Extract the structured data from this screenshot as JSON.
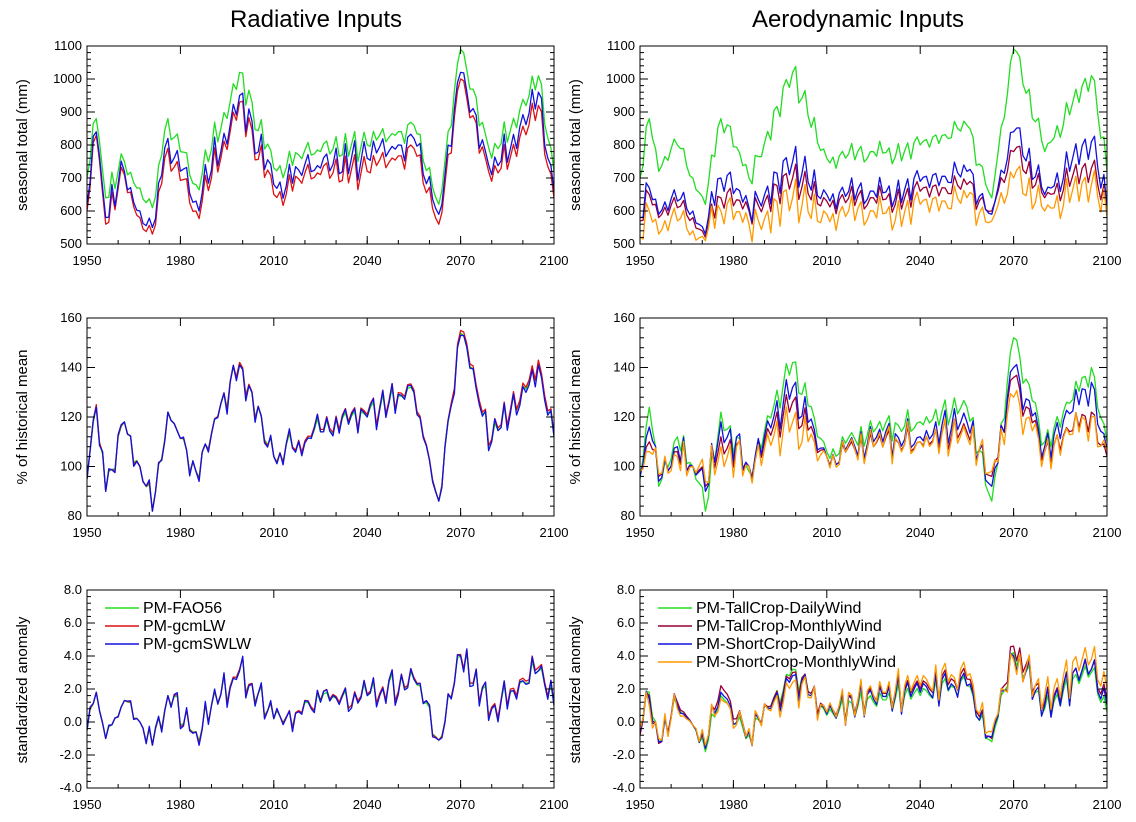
{
  "titles": [
    "Radiative Inputs",
    "Aerodynamic Inputs"
  ],
  "ylabels": [
    "seasonal total (mm)",
    "% of historical mean",
    "standardized anomaly"
  ],
  "chart_data": [
    {
      "type": "line",
      "panel": "radiative-seasonal-total",
      "title": "Radiative Inputs",
      "xlabel": "",
      "ylabel": "seasonal total (mm)",
      "xlim": [
        1950,
        2100
      ],
      "ylim": [
        500,
        1100
      ],
      "xticks": [
        1950,
        1980,
        2010,
        2040,
        2070,
        2100
      ],
      "yticks": [
        500,
        600,
        700,
        800,
        900,
        1000,
        1100
      ],
      "ytick_decimals": 0,
      "anchors_year": [
        1950,
        1953,
        1956,
        1962,
        1967,
        1971,
        1976,
        1985,
        1999,
        2010,
        2025,
        2040,
        2055,
        2063,
        2070,
        2080,
        2095,
        2100
      ],
      "series": [
        {
          "name": "PM-FAO56",
          "color": "#22dd22",
          "anchors": [
            700,
            880,
            640,
            750,
            670,
            610,
            880,
            680,
            1020,
            730,
            780,
            800,
            860,
            620,
            1090,
            760,
            1010,
            720
          ]
        },
        {
          "name": "PM-gcmLW",
          "color": "#dd1111",
          "anchors": [
            600,
            830,
            560,
            710,
            580,
            530,
            790,
            600,
            930,
            650,
            710,
            720,
            790,
            560,
            1000,
            690,
            920,
            640
          ]
        },
        {
          "name": "PM-gcmSWLW",
          "color": "#1111dd",
          "anchors": [
            620,
            840,
            580,
            720,
            600,
            550,
            820,
            630,
            950,
            680,
            730,
            760,
            820,
            590,
            1020,
            710,
            960,
            660
          ]
        }
      ]
    },
    {
      "type": "line",
      "panel": "aerodynamic-seasonal-total",
      "title": "Aerodynamic Inputs",
      "xlabel": "",
      "ylabel": "seasonal total (mm)",
      "xlim": [
        1950,
        2100
      ],
      "ylim": [
        500,
        1100
      ],
      "xticks": [
        1950,
        1980,
        2010,
        2040,
        2070,
        2100
      ],
      "yticks": [
        500,
        600,
        700,
        800,
        900,
        1000,
        1100
      ],
      "ytick_decimals": 0,
      "anchors_year": [
        1950,
        1953,
        1956,
        1962,
        1967,
        1971,
        1976,
        1985,
        1999,
        2010,
        2025,
        2040,
        2055,
        2063,
        2070,
        2080,
        2095,
        2100
      ],
      "series": [
        {
          "name": "PM-TallCrop-DailyWind",
          "color": "#22dd22",
          "anchors": [
            700,
            880,
            720,
            800,
            700,
            620,
            880,
            700,
            1020,
            760,
            780,
            800,
            860,
            640,
            1090,
            780,
            1010,
            720
          ]
        },
        {
          "name": "PM-TallCrop-MonthlyWind",
          "color": "#990033",
          "anchors": [
            570,
            650,
            580,
            610,
            580,
            520,
            640,
            600,
            700,
            630,
            640,
            660,
            680,
            600,
            780,
            640,
            730,
            600
          ]
        },
        {
          "name": "PM-ShortCrop-DailyWind",
          "color": "#1111dd",
          "anchors": [
            580,
            670,
            590,
            630,
            600,
            530,
            700,
            610,
            750,
            650,
            660,
            690,
            720,
            590,
            840,
            650,
            810,
            610
          ]
        },
        {
          "name": "PM-ShortCrop-MonthlyWind",
          "color": "#ff9900",
          "anchors": [
            520,
            600,
            530,
            570,
            540,
            510,
            600,
            560,
            640,
            590,
            600,
            620,
            640,
            570,
            700,
            600,
            680,
            580
          ]
        }
      ]
    },
    {
      "type": "line",
      "panel": "radiative-percent-historical",
      "xlabel": "",
      "ylabel": "% of historical mean",
      "xlim": [
        1950,
        2100
      ],
      "ylim": [
        80,
        160
      ],
      "xticks": [
        1950,
        1980,
        2010,
        2040,
        2070,
        2100
      ],
      "yticks": [
        80,
        100,
        120,
        140,
        160
      ],
      "ytick_decimals": 0,
      "anchors_year": [
        1950,
        1953,
        1956,
        1962,
        1967,
        1971,
        1976,
        1985,
        1999,
        2010,
        2025,
        2040,
        2055,
        2063,
        2070,
        2080,
        2095,
        2100
      ],
      "series": [
        {
          "name": "PM-FAO56",
          "color": "#22dd22",
          "anchors": [
            95,
            124,
            90,
            118,
            100,
            82,
            122,
            98,
            142,
            104,
            114,
            120,
            130,
            86,
            154,
            110,
            142,
            112
          ]
        },
        {
          "name": "PM-gcmLW",
          "color": "#dd1111",
          "anchors": [
            95,
            125,
            90,
            118,
            100,
            82,
            122,
            98,
            142,
            104,
            115,
            121,
            131,
            86,
            155,
            111,
            143,
            113
          ]
        },
        {
          "name": "PM-gcmSWLW",
          "color": "#1111dd",
          "anchors": [
            95,
            124,
            90,
            118,
            100,
            82,
            122,
            98,
            141,
            104,
            114,
            120,
            130,
            86,
            153,
            110,
            141,
            112
          ]
        }
      ]
    },
    {
      "type": "line",
      "panel": "aerodynamic-percent-historical",
      "xlabel": "",
      "ylabel": "% of historical mean",
      "xlim": [
        1950,
        2100
      ],
      "ylim": [
        80,
        160
      ],
      "xticks": [
        1950,
        1980,
        2010,
        2040,
        2070,
        2100
      ],
      "yticks": [
        80,
        100,
        120,
        140,
        160
      ],
      "ytick_decimals": 0,
      "anchors_year": [
        1950,
        1953,
        1956,
        1962,
        1967,
        1971,
        1976,
        1985,
        1999,
        2010,
        2025,
        2040,
        2055,
        2063,
        2070,
        2080,
        2095,
        2100
      ],
      "series": [
        {
          "name": "PM-TallCrop-DailyWind",
          "color": "#22dd22",
          "anchors": [
            95,
            124,
            92,
            112,
            100,
            82,
            122,
            98,
            142,
            106,
            114,
            118,
            124,
            86,
            152,
            110,
            140,
            110
          ]
        },
        {
          "name": "PM-TallCrop-MonthlyWind",
          "color": "#990033",
          "anchors": [
            97,
            110,
            96,
            106,
            100,
            92,
            112,
            100,
            126,
            104,
            108,
            110,
            114,
            96,
            136,
            106,
            122,
            104
          ]
        },
        {
          "name": "PM-ShortCrop-DailyWind",
          "color": "#1111dd",
          "anchors": [
            96,
            116,
            94,
            108,
            100,
            90,
            118,
            100,
            132,
            104,
            110,
            112,
            118,
            92,
            140,
            108,
            134,
            106
          ]
        },
        {
          "name": "PM-ShortCrop-MonthlyWind",
          "color": "#ff9900",
          "anchors": [
            98,
            106,
            97,
            104,
            100,
            94,
            108,
            100,
            118,
            104,
            108,
            110,
            112,
            98,
            128,
            106,
            120,
            106
          ]
        }
      ]
    },
    {
      "type": "line",
      "panel": "radiative-standardized-anomaly",
      "xlabel": "",
      "ylabel": "standardized anomaly",
      "xlim": [
        1950,
        2100
      ],
      "ylim": [
        -4,
        8
      ],
      "xticks": [
        1950,
        1980,
        2010,
        2040,
        2070,
        2100
      ],
      "yticks": [
        -4,
        -2,
        0,
        2,
        4,
        6,
        8
      ],
      "ytick_decimals": 1,
      "legend": {
        "placement": "top-left",
        "entries": [
          "PM-FAO56",
          "PM-gcmLW",
          "PM-gcmSWLW"
        ]
      },
      "anchors_year": [
        1950,
        1953,
        1956,
        1962,
        1967,
        1971,
        1976,
        1985,
        1999,
        2010,
        2025,
        2040,
        2055,
        2063,
        2070,
        2080,
        2095,
        2100
      ],
      "series": [
        {
          "name": "PM-FAO56",
          "color": "#22dd22",
          "anchors": [
            -0.5,
            1.8,
            -1.0,
            1.3,
            0.0,
            -1.4,
            1.6,
            -0.6,
            3.2,
            0.2,
            1.2,
            1.6,
            2.6,
            -1.1,
            4.0,
            0.8,
            3.1,
            1.0
          ]
        },
        {
          "name": "PM-gcmLW",
          "color": "#dd1111",
          "anchors": [
            -0.5,
            1.8,
            -1.0,
            1.3,
            0.0,
            -1.4,
            1.6,
            -0.6,
            3.2,
            0.2,
            1.3,
            1.7,
            2.7,
            -1.1,
            4.1,
            0.9,
            3.3,
            1.1
          ]
        },
        {
          "name": "PM-gcmSWLW",
          "color": "#1111dd",
          "anchors": [
            -0.5,
            1.8,
            -1.0,
            1.3,
            0.0,
            -1.4,
            1.6,
            -0.6,
            3.1,
            0.2,
            1.2,
            1.6,
            2.6,
            -1.1,
            4.0,
            0.8,
            3.1,
            1.0
          ]
        }
      ]
    },
    {
      "type": "line",
      "panel": "aerodynamic-standardized-anomaly",
      "xlabel": "",
      "ylabel": "standardized anomaly",
      "xlim": [
        1950,
        2100
      ],
      "ylim": [
        -4,
        8
      ],
      "xticks": [
        1950,
        1980,
        2010,
        2040,
        2070,
        2100
      ],
      "yticks": [
        -4,
        -2,
        0,
        2,
        4,
        6,
        8
      ],
      "ytick_decimals": 1,
      "legend": {
        "placement": "top-left",
        "entries": [
          "PM-TallCrop-DailyWind",
          "PM-TallCrop-MonthlyWind",
          "PM-ShortCrop-DailyWind",
          "PM-ShortCrop-MonthlyWind"
        ]
      },
      "anchors_year": [
        1950,
        1953,
        1956,
        1962,
        1967,
        1971,
        1976,
        1985,
        1999,
        2010,
        2025,
        2040,
        2055,
        2063,
        2070,
        2080,
        2095,
        2100
      ],
      "series": [
        {
          "name": "PM-TallCrop-DailyWind",
          "color": "#22dd22",
          "anchors": [
            -0.6,
            1.8,
            -1.2,
            1.0,
            -0.2,
            -1.8,
            1.6,
            -0.8,
            3.2,
            0.4,
            1.2,
            1.6,
            2.2,
            -1.2,
            4.2,
            0.8,
            3.0,
            0.6
          ]
        },
        {
          "name": "PM-TallCrop-MonthlyWind",
          "color": "#990033",
          "anchors": [
            -0.8,
            1.6,
            -1.3,
            1.2,
            -0.2,
            -1.6,
            2.2,
            -0.6,
            3.0,
            0.6,
            1.6,
            2.0,
            2.6,
            -1.0,
            4.6,
            1.2,
            3.2,
            1.4
          ]
        },
        {
          "name": "PM-ShortCrop-DailyWind",
          "color": "#1111dd",
          "anchors": [
            -0.6,
            1.4,
            -1.2,
            1.0,
            -0.2,
            -1.6,
            1.8,
            -0.6,
            2.8,
            0.5,
            1.4,
            1.8,
            2.2,
            -0.9,
            4.0,
            1.0,
            3.2,
            1.0
          ]
        },
        {
          "name": "PM-ShortCrop-MonthlyWind",
          "color": "#ff9900",
          "anchors": [
            -0.4,
            1.0,
            -1.0,
            0.8,
            -0.2,
            -1.4,
            1.4,
            -0.4,
            2.4,
            0.6,
            1.6,
            2.2,
            2.8,
            -0.6,
            3.8,
            1.6,
            3.8,
            2.0
          ]
        }
      ]
    }
  ]
}
